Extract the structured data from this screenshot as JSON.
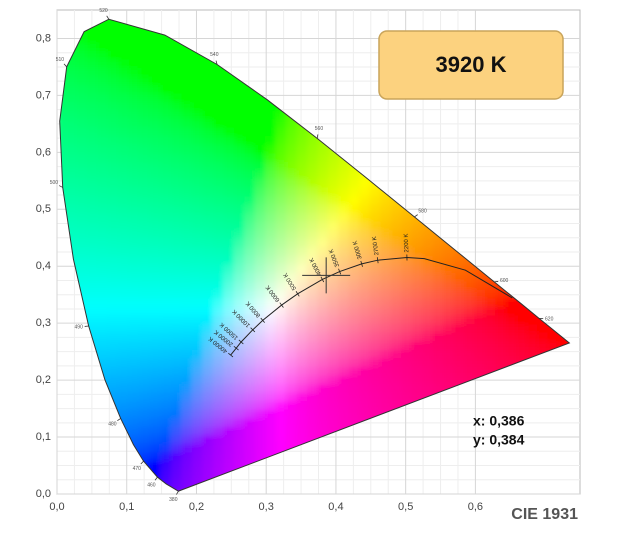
{
  "chart_data": {
    "type": "chromaticity",
    "footer": "CIE 1931",
    "cct_label": "3920 K",
    "point": {
      "x": 0.386,
      "y": 0.384,
      "x_label": "x: 0,386",
      "y_label": "y: 0,384"
    },
    "xlim": [
      0,
      0.75
    ],
    "ylim": [
      0,
      0.85
    ],
    "xticks": [
      {
        "value": 0,
        "label": "0,0"
      },
      {
        "value": 0.1,
        "label": "0,1"
      },
      {
        "value": 0.2,
        "label": "0,2"
      },
      {
        "value": 0.3,
        "label": "0,3"
      },
      {
        "value": 0.4,
        "label": "0,4"
      },
      {
        "value": 0.5,
        "label": "0,5"
      },
      {
        "value": 0.6,
        "label": "0,6"
      }
    ],
    "yticks": [
      {
        "value": 0,
        "label": "0,0"
      },
      {
        "value": 0.1,
        "label": "0,1"
      },
      {
        "value": 0.2,
        "label": "0,2"
      },
      {
        "value": 0.3,
        "label": "0,3"
      },
      {
        "value": 0.4,
        "label": "0,4"
      },
      {
        "value": 0.5,
        "label": "0,5"
      },
      {
        "value": 0.6,
        "label": "0,6"
      },
      {
        "value": 0.7,
        "label": "0,7"
      },
      {
        "value": 0.8,
        "label": "0,8"
      }
    ],
    "grid": true,
    "spectral_locus": {
      "x": [
        0.1741,
        0.1566,
        0.144,
        0.1241,
        0.1096,
        0.0913,
        0.0687,
        0.0454,
        0.0235,
        0.0082,
        0.0039,
        0.0139,
        0.0389,
        0.0743,
        0.1547,
        0.2296,
        0.3016,
        0.3731,
        0.4441,
        0.5125,
        0.5752,
        0.627,
        0.6658,
        0.6915,
        0.7347
      ],
      "y": [
        0.005,
        0.0177,
        0.0297,
        0.0578,
        0.0868,
        0.1327,
        0.2007,
        0.295,
        0.4127,
        0.5384,
        0.6548,
        0.7502,
        0.812,
        0.8338,
        0.8059,
        0.7543,
        0.6923,
        0.6245,
        0.5547,
        0.4866,
        0.4242,
        0.3725,
        0.334,
        0.3083,
        0.2653
      ],
      "labels": [
        "380",
        null,
        "460",
        "470",
        null,
        "480",
        null,
        "490",
        null,
        "500",
        null,
        "510",
        null,
        "520",
        null,
        "540",
        null,
        "560",
        null,
        "580",
        null,
        "600",
        null,
        "620",
        null
      ]
    },
    "planckian_locus": {
      "x": [
        0.249,
        0.257,
        0.264,
        0.2807,
        0.295,
        0.3221,
        0.3451,
        0.3805,
        0.4053,
        0.4369,
        0.4599,
        0.5018,
        0.5267,
        0.5857,
        0.6528
      ],
      "y": [
        0.244,
        0.256,
        0.267,
        0.2883,
        0.305,
        0.3318,
        0.3516,
        0.3768,
        0.3907,
        0.4041,
        0.4106,
        0.4153,
        0.4133,
        0.3931,
        0.3444
      ],
      "labels": [
        "40000 K",
        "20000 K",
        "15000 K",
        "10000 K",
        "8000 K",
        "6000 K",
        "5000 K",
        "4000 K",
        "3500 K",
        "3000 K",
        "2700 K",
        "2200 K",
        null,
        null,
        null
      ]
    }
  }
}
